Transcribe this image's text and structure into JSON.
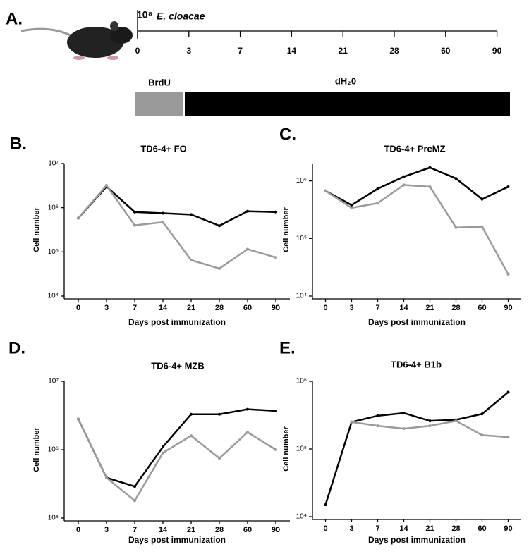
{
  "timeline": {
    "label": "A.",
    "dose": "10⁸",
    "organism": "E. cloacae",
    "days": [
      0,
      3,
      7,
      14,
      21,
      28,
      60,
      90
    ],
    "treatments": [
      "BrdU",
      "dH₂0"
    ]
  },
  "chart_data": [
    {
      "type": "line",
      "label": "B.",
      "title": "TD6-4+  FO",
      "x_label": "Days post immunization",
      "y_label": "Cell number",
      "categories": [
        "0",
        "3",
        "7",
        "14",
        "21",
        "28",
        "60",
        "90"
      ],
      "log_scale": true,
      "ylim": [
        10000,
        10000000
      ],
      "yticks": [
        {
          "value": 10000,
          "label": "10⁴"
        },
        {
          "value": 100000,
          "label": "10⁵"
        },
        {
          "value": 1000000,
          "label": "10⁶"
        },
        {
          "value": 10000000,
          "label": "10⁷"
        }
      ],
      "series": [
        {
          "color": "#000000",
          "values": [
            580000,
            3000000,
            800000,
            750000,
            700000,
            390000,
            830000,
            800000
          ]
        },
        {
          "color": "#9a9a9a",
          "values": [
            580000,
            3200000,
            400000,
            470000,
            65000,
            42000,
            115000,
            75000
          ]
        }
      ]
    },
    {
      "type": "line",
      "label": "C.",
      "title": "TD6-4+ PreMZ",
      "x_label": "Days post immunization",
      "y_label": "Cell number",
      "categories": [
        "0",
        "3",
        "7",
        "14",
        "21",
        "28",
        "60",
        "90"
      ],
      "log_scale": true,
      "ylim": [
        10000,
        2000000
      ],
      "yticks": [
        {
          "value": 10000,
          "label": "10⁴"
        },
        {
          "value": 100000,
          "label": "10⁵"
        },
        {
          "value": 1000000,
          "label": "10⁶"
        }
      ],
      "series": [
        {
          "color": "#000000",
          "values": [
            670000,
            380000,
            730000,
            1180000,
            1700000,
            1100000,
            480000,
            790000
          ]
        },
        {
          "color": "#9a9a9a",
          "values": [
            670000,
            340000,
            410000,
            850000,
            790000,
            155000,
            160000,
            24000
          ]
        }
      ]
    },
    {
      "type": "line",
      "label": "D.",
      "title": "TD6-4+ MZB",
      "x_label": "Days post immunization",
      "y_label": "Cell number",
      "categories": [
        "0",
        "3",
        "7",
        "14",
        "21",
        "28",
        "60",
        "90"
      ],
      "log_scale": true,
      "ylim": [
        100000,
        10000000
      ],
      "yticks": [
        {
          "value": 100000,
          "label": "10⁵"
        },
        {
          "value": 1000000,
          "label": "10⁶"
        },
        {
          "value": 10000000,
          "label": "10⁷"
        }
      ],
      "series": [
        {
          "color": "#000000",
          "values": [
            2800000,
            390000,
            290000,
            1100000,
            3300000,
            3300000,
            3900000,
            3700000
          ]
        },
        {
          "color": "#9a9a9a",
          "values": [
            2800000,
            390000,
            180000,
            900000,
            1600000,
            750000,
            1800000,
            1000000
          ]
        }
      ]
    },
    {
      "type": "line",
      "label": "E.",
      "title": "TD6-4+ B1b",
      "x_label": "Days post immunization",
      "y_label": "Cell number",
      "categories": [
        "0",
        "3",
        "7",
        "14",
        "21",
        "28",
        "60",
        "90"
      ],
      "log_scale": true,
      "ylim": [
        10000,
        1000000
      ],
      "yticks": [
        {
          "value": 10000,
          "label": "10⁴"
        },
        {
          "value": 100000,
          "label": "10⁵"
        },
        {
          "value": 1000000,
          "label": "10⁶"
        }
      ],
      "series": [
        {
          "color": "#000000",
          "values": [
            15000,
            250000,
            310000,
            340000,
            260000,
            270000,
            330000,
            690000
          ]
        },
        {
          "color": "#9a9a9a",
          "values": [
            null,
            250000,
            220000,
            200000,
            220000,
            260000,
            160000,
            150000
          ]
        }
      ]
    }
  ]
}
